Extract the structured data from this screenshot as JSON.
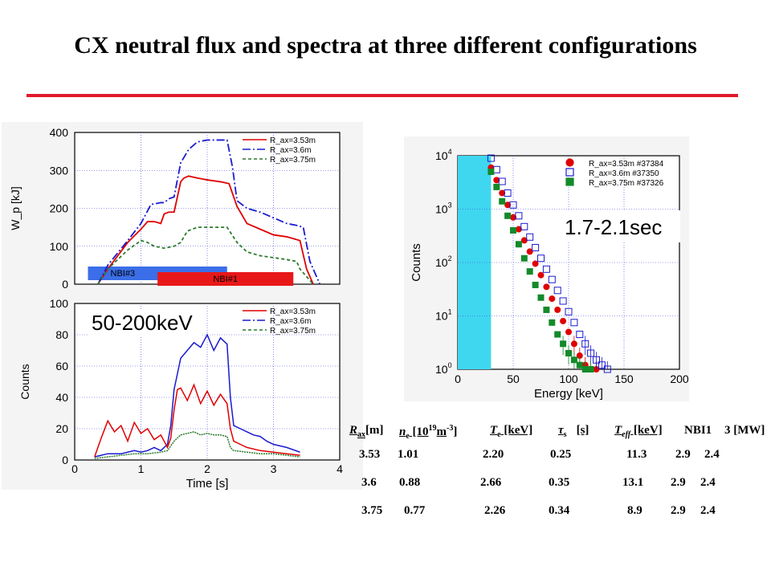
{
  "slide": {
    "title": "CX neutral flux and spectra at three different configurations",
    "accent_color": "#e0182a"
  },
  "chart_data": [
    {
      "type": "line",
      "id": "wp",
      "ylabel": "W_p [kJ]",
      "xlim": [
        0,
        4
      ],
      "ylim": [
        0,
        400
      ],
      "yticks": [
        0,
        100,
        200,
        300,
        400
      ],
      "grid": true,
      "legend": {
        "position": "top-right",
        "entries": [
          "R_ax=3.53m",
          "R_ax=3.6m",
          "R_ax=3.75m"
        ]
      },
      "series": [
        {
          "name": "R_ax=3.53m",
          "color": "#e00000",
          "dash": "solid",
          "x": [
            0.35,
            0.5,
            0.8,
            1.0,
            1.1,
            1.2,
            1.3,
            1.35,
            1.42,
            1.5,
            1.6,
            1.65,
            1.72,
            1.85,
            2.0,
            2.2,
            2.33,
            2.45,
            2.6,
            2.8,
            3.0,
            3.2,
            3.3,
            3.4,
            3.5,
            3.6
          ],
          "y": [
            0,
            40,
            110,
            145,
            165,
            165,
            160,
            185,
            190,
            190,
            270,
            280,
            285,
            280,
            275,
            270,
            265,
            205,
            160,
            145,
            130,
            125,
            120,
            115,
            40,
            0
          ]
        },
        {
          "name": "R_ax=3.6m",
          "color": "#1a1ad0",
          "dash": "dashdot",
          "x": [
            0.35,
            0.5,
            0.8,
            1.0,
            1.15,
            1.3,
            1.35,
            1.42,
            1.5,
            1.6,
            1.72,
            1.85,
            2.0,
            2.15,
            2.3,
            2.38,
            2.45,
            2.6,
            2.8,
            3.0,
            3.2,
            3.35,
            3.45,
            3.55,
            3.7
          ],
          "y": [
            0,
            50,
            115,
            160,
            210,
            215,
            215,
            225,
            230,
            320,
            355,
            375,
            380,
            380,
            380,
            310,
            220,
            200,
            190,
            175,
            160,
            155,
            150,
            60,
            0
          ]
        },
        {
          "name": "R_ax=3.75m",
          "color": "#2a7a2a",
          "dash": "dashed",
          "x": [
            0.35,
            0.5,
            0.8,
            1.0,
            1.1,
            1.2,
            1.35,
            1.5,
            1.6,
            1.7,
            1.85,
            2.0,
            2.2,
            2.3,
            2.45,
            2.6,
            2.8,
            3.0,
            3.2,
            3.35,
            3.4,
            3.5,
            3.6
          ],
          "y": [
            0,
            40,
            90,
            115,
            110,
            100,
            95,
            100,
            110,
            140,
            150,
            150,
            150,
            150,
            110,
            85,
            75,
            70,
            65,
            60,
            40,
            20,
            0
          ]
        }
      ],
      "bars": [
        {
          "label": "NBI#3",
          "from": 0.2,
          "to": 2.3,
          "color": "#3b6ee8"
        },
        {
          "label": "NBI#1",
          "from": 1.25,
          "to": 3.3,
          "color": "#e81818"
        }
      ]
    },
    {
      "type": "line",
      "id": "counts_time",
      "xlabel": "Time [s]",
      "ylabel": "Counts",
      "xlim": [
        0,
        4
      ],
      "ylim": [
        0,
        100
      ],
      "xticks": [
        0,
        1,
        2,
        3,
        4
      ],
      "yticks": [
        0,
        20,
        40,
        60,
        80,
        100
      ],
      "grid": true,
      "annotation": "50-200keV",
      "legend": {
        "position": "top-right",
        "entries": [
          "R_ax=3.53m",
          "R_ax=3.6m",
          "R_ax=3.75m"
        ]
      },
      "series": [
        {
          "name": "R_ax=3.53m",
          "color": "#e00000",
          "x": [
            0.3,
            0.4,
            0.5,
            0.6,
            0.7,
            0.8,
            0.9,
            1.0,
            1.1,
            1.2,
            1.3,
            1.4,
            1.45,
            1.5,
            1.55,
            1.6,
            1.7,
            1.8,
            1.9,
            2.0,
            2.1,
            2.2,
            2.3,
            2.35,
            2.4,
            2.5,
            2.6,
            2.8,
            3.0,
            3.2,
            3.4
          ],
          "y": [
            2,
            14,
            25,
            18,
            22,
            12,
            24,
            17,
            20,
            13,
            16,
            8,
            14,
            32,
            45,
            46,
            38,
            48,
            36,
            44,
            35,
            42,
            36,
            20,
            12,
            10,
            8,
            6,
            5,
            4,
            3
          ]
        },
        {
          "name": "R_ax=3.6m",
          "color": "#1a1ad0",
          "x": [
            0.3,
            0.5,
            0.7,
            0.9,
            1.0,
            1.1,
            1.2,
            1.3,
            1.4,
            1.45,
            1.5,
            1.55,
            1.6,
            1.7,
            1.8,
            1.9,
            2.0,
            2.1,
            2.2,
            2.3,
            2.35,
            2.4,
            2.5,
            2.6,
            2.7,
            2.8,
            2.9,
            3.0,
            3.2,
            3.4
          ],
          "y": [
            2,
            4,
            4,
            6,
            5,
            6,
            8,
            6,
            10,
            22,
            45,
            55,
            65,
            70,
            75,
            72,
            80,
            70,
            78,
            74,
            40,
            22,
            20,
            18,
            16,
            15,
            12,
            10,
            8,
            5
          ]
        },
        {
          "name": "R_ax=3.75m",
          "color": "#2a7a2a",
          "x": [
            0.3,
            0.5,
            0.7,
            0.9,
            1.1,
            1.3,
            1.4,
            1.5,
            1.6,
            1.7,
            1.8,
            1.9,
            2.0,
            2.1,
            2.2,
            2.3,
            2.35,
            2.4,
            2.6,
            2.8,
            3.0,
            3.2,
            3.4
          ],
          "y": [
            1,
            2,
            3,
            4,
            4,
            5,
            6,
            12,
            16,
            17,
            18,
            16,
            17,
            16,
            16,
            15,
            8,
            6,
            5,
            4,
            4,
            3,
            2
          ]
        }
      ]
    },
    {
      "type": "scatter",
      "id": "spectra",
      "xlabel": "Energy [keV]",
      "ylabel": "Counts",
      "xlim": [
        0,
        200
      ],
      "ylim": [
        1,
        10000
      ],
      "yscale": "log",
      "xticks": [
        0,
        50,
        100,
        150,
        200
      ],
      "yticks": [
        1,
        10,
        100,
        1000,
        10000
      ],
      "ytick_labels": [
        {
          "base": "10",
          "exp": "0"
        },
        {
          "base": "10",
          "exp": "1"
        },
        {
          "base": "10",
          "exp": "2"
        },
        {
          "base": "10",
          "exp": "3"
        },
        {
          "base": "10",
          "exp": "4"
        }
      ],
      "grid": true,
      "shaded_region": {
        "from": 0,
        "to": 30,
        "color": "#3fd7ef"
      },
      "annotation": "1.7-2.1sec",
      "legend": {
        "position": "top-right",
        "entries": [
          "R_ax=3.53m #37384",
          "R_ax=3.6m #37350",
          "R_ax=3.75m #37326"
        ]
      },
      "series": [
        {
          "name": "R_ax=3.53m #37384",
          "color": "#e00000",
          "marker": "circle",
          "x": [
            30,
            35,
            40,
            45,
            50,
            55,
            60,
            65,
            70,
            75,
            80,
            85,
            90,
            95,
            100,
            105,
            110,
            115,
            120,
            125
          ],
          "y": [
            6000,
            3500,
            2000,
            1200,
            700,
            420,
            260,
            160,
            95,
            58,
            35,
            21,
            13,
            8,
            5,
            3,
            1.8,
            1.2,
            1,
            1
          ]
        },
        {
          "name": "R_ax=3.6m #37350",
          "color": "#1a1ad0",
          "marker": "square-open",
          "x": [
            30,
            35,
            40,
            45,
            50,
            55,
            60,
            65,
            70,
            75,
            80,
            85,
            90,
            95,
            100,
            105,
            110,
            115,
            120,
            125,
            130,
            135
          ],
          "y": [
            9000,
            5500,
            3300,
            2000,
            1200,
            750,
            470,
            300,
            190,
            120,
            75,
            48,
            30,
            19,
            12,
            7.5,
            4.5,
            3,
            2,
            1.5,
            1.2,
            1
          ]
        },
        {
          "name": "R_ax=3.75m #37326",
          "color": "#138a2a",
          "marker": "square",
          "x": [
            30,
            35,
            40,
            45,
            50,
            55,
            60,
            65,
            70,
            75,
            80,
            85,
            90,
            95,
            100,
            105,
            110,
            115,
            120
          ],
          "y": [
            5000,
            2600,
            1400,
            750,
            400,
            220,
            120,
            68,
            38,
            22,
            13,
            7.5,
            4.5,
            3,
            2,
            1.5,
            1.2,
            1,
            1
          ]
        }
      ]
    }
  ],
  "table": {
    "headers": [
      "R",
      "ax",
      "[m]",
      "n",
      "e",
      " [10",
      "19",
      "m",
      "-3",
      "]",
      "T",
      "e",
      " [keV]",
      "τ",
      "s",
      "[s]",
      "T",
      "eff",
      " [keV]",
      "NBI1",
      "3 [MW]"
    ],
    "rows": [
      [
        "3.53",
        "1.01",
        "2.20",
        "0.25",
        "11.3",
        "2.9",
        "2.4"
      ],
      [
        "3.6",
        "0.88",
        "2.66",
        "0.35",
        "13.1",
        "2.9",
        "2.4"
      ],
      [
        "3.75",
        "0.77",
        "2.26",
        "0.34",
        "8.9",
        "2.9",
        "2.4"
      ]
    ]
  }
}
